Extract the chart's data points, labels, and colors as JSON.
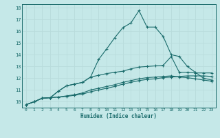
{
  "xlabel": "Humidex (Indice chaleur)",
  "bg_color": "#c5e8e8",
  "grid_color": "#dff0f0",
  "line_color": "#1a6b6b",
  "xlim": [
    -0.5,
    23.5
  ],
  "ylim": [
    9.5,
    18.3
  ],
  "xticks": [
    0,
    1,
    2,
    3,
    4,
    5,
    6,
    7,
    8,
    9,
    10,
    11,
    12,
    13,
    14,
    15,
    16,
    17,
    18,
    19,
    20,
    21,
    22,
    23
  ],
  "yticks": [
    10,
    11,
    12,
    13,
    14,
    15,
    16,
    17,
    18
  ],
  "line1_x": [
    0,
    1,
    2,
    3,
    4,
    5,
    6,
    7,
    8,
    9,
    10,
    11,
    12,
    13,
    14,
    15,
    16,
    17,
    18,
    19,
    20,
    21,
    22,
    23
  ],
  "line1_y": [
    9.75,
    10.0,
    10.3,
    10.35,
    10.4,
    10.45,
    10.55,
    10.65,
    10.85,
    11.0,
    11.15,
    11.3,
    11.5,
    11.65,
    11.8,
    11.9,
    11.95,
    12.05,
    12.1,
    12.15,
    12.2,
    12.2,
    12.2,
    12.15
  ],
  "line2_x": [
    0,
    1,
    2,
    3,
    4,
    5,
    6,
    7,
    8,
    9,
    10,
    11,
    12,
    13,
    14,
    15,
    16,
    17,
    18,
    19,
    20,
    21,
    22,
    23
  ],
  "line2_y": [
    9.75,
    10.0,
    10.3,
    10.35,
    10.4,
    10.5,
    10.6,
    10.75,
    11.0,
    11.15,
    11.3,
    11.45,
    11.65,
    11.8,
    11.95,
    12.05,
    12.1,
    12.15,
    12.2,
    12.1,
    12.05,
    11.95,
    11.85,
    11.75
  ],
  "line3_x": [
    0,
    1,
    2,
    3,
    4,
    5,
    6,
    7,
    8,
    9,
    10,
    11,
    12,
    13,
    14,
    15,
    16,
    17,
    18,
    19,
    20,
    21,
    22,
    23
  ],
  "line3_y": [
    9.75,
    10.0,
    10.3,
    10.35,
    10.9,
    11.35,
    11.5,
    11.65,
    12.1,
    12.25,
    12.4,
    12.5,
    12.6,
    12.8,
    12.95,
    13.0,
    13.05,
    13.1,
    13.85,
    12.5,
    12.5,
    12.45,
    12.45,
    12.45
  ],
  "line4_x": [
    0,
    1,
    2,
    3,
    4,
    5,
    6,
    7,
    8,
    9,
    10,
    11,
    12,
    13,
    14,
    15,
    16,
    17,
    18,
    19,
    20,
    21,
    22,
    23
  ],
  "line4_y": [
    9.75,
    10.0,
    10.3,
    10.35,
    10.9,
    11.35,
    11.5,
    11.65,
    12.1,
    13.6,
    14.5,
    15.45,
    16.3,
    16.7,
    17.75,
    16.35,
    16.35,
    15.55,
    14.0,
    13.85,
    13.0,
    12.5,
    12.0,
    11.85
  ]
}
